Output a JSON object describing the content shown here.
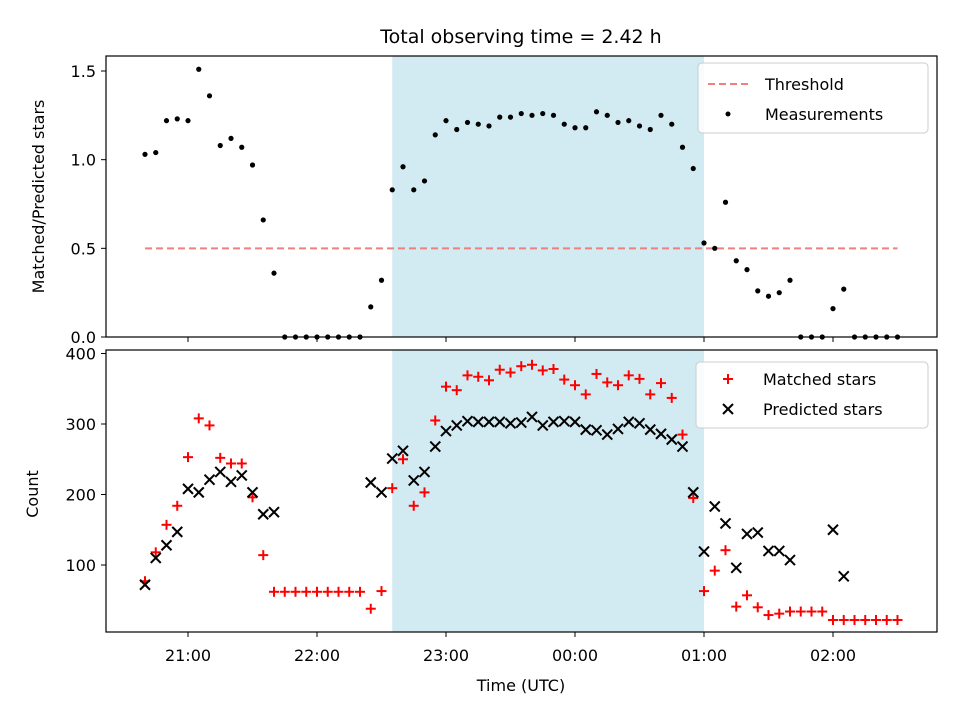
{
  "title": "Total observing time = 2.42 h",
  "xlabel": "Time (UTC)",
  "x_ticks": [
    "21:00",
    "22:00",
    "23:00",
    "00:00",
    "01:00",
    "02:00"
  ],
  "colors": {
    "threshold": "#f08080",
    "measurements": "#000000",
    "matched": "#ff0000",
    "predicted": "#000000",
    "span": "#add8e6"
  },
  "chart_data": [
    {
      "type": "scatter",
      "ylabel": "Matched/Predicted stars",
      "ylim": [
        0,
        1.6
      ],
      "y_ticks": [
        "0.0",
        "0.5",
        "1.0",
        "1.5"
      ],
      "observing_window": [
        "22:35",
        "01:00"
      ],
      "threshold": {
        "name": "Threshold",
        "y": 0.5,
        "x_range": [
          "20:40",
          "02:30"
        ]
      },
      "series": [
        {
          "name": "Measurements",
          "x": [
            "20:40",
            "20:45",
            "20:50",
            "20:55",
            "21:00",
            "21:05",
            "21:10",
            "21:15",
            "21:20",
            "21:25",
            "21:30",
            "21:35",
            "21:40",
            "21:45",
            "21:50",
            "21:55",
            "22:00",
            "22:05",
            "22:10",
            "22:15",
            "22:20",
            "22:25",
            "22:30",
            "22:35",
            "22:40",
            "22:45",
            "22:50",
            "22:55",
            "23:00",
            "23:05",
            "23:10",
            "23:15",
            "23:20",
            "23:25",
            "23:30",
            "23:35",
            "23:40",
            "23:45",
            "23:50",
            "23:55",
            "00:00",
            "00:05",
            "00:10",
            "00:15",
            "00:20",
            "00:25",
            "00:30",
            "00:35",
            "00:40",
            "00:45",
            "00:50",
            "00:55",
            "01:00",
            "01:05",
            "01:10",
            "01:15",
            "01:20",
            "01:25",
            "01:30",
            "01:35",
            "01:40",
            "01:45",
            "01:50",
            "01:55",
            "02:00",
            "02:05",
            "02:10",
            "02:15",
            "02:20",
            "02:25",
            "02:30"
          ],
          "y": [
            1.03,
            1.04,
            1.22,
            1.23,
            1.22,
            1.51,
            1.36,
            1.08,
            1.12,
            1.07,
            0.97,
            0.66,
            0.36,
            0,
            0,
            0,
            0,
            0,
            0,
            0,
            0,
            0.17,
            0.32,
            0.83,
            0.96,
            0.83,
            0.88,
            1.14,
            1.22,
            1.17,
            1.21,
            1.2,
            1.19,
            1.24,
            1.24,
            1.26,
            1.25,
            1.26,
            1.25,
            1.2,
            1.18,
            1.18,
            1.27,
            1.25,
            1.21,
            1.22,
            1.19,
            1.17,
            1.25,
            1.2,
            1.07,
            0.95,
            0.53,
            0.5,
            0.76,
            0.43,
            0.38,
            0.26,
            0.23,
            0.25,
            0.32,
            0,
            0,
            0,
            0.16,
            0.27,
            0,
            0,
            0,
            0,
            0
          ]
        }
      ]
    },
    {
      "type": "scatter",
      "ylabel": "Count",
      "ylim": [
        0,
        400
      ],
      "y_ticks": [
        "100",
        "200",
        "300",
        "400"
      ],
      "observing_window": [
        "22:35",
        "01:00"
      ],
      "series": [
        {
          "name": "Matched stars",
          "x": [
            "20:40",
            "20:45",
            "20:50",
            "20:55",
            "21:00",
            "21:05",
            "21:10",
            "21:15",
            "21:20",
            "21:25",
            "21:30",
            "21:35",
            "21:40",
            "21:45",
            "21:50",
            "21:55",
            "22:00",
            "22:05",
            "22:10",
            "22:15",
            "22:20",
            "22:25",
            "22:30",
            "22:35",
            "22:40",
            "22:45",
            "22:50",
            "22:55",
            "23:00",
            "23:05",
            "23:10",
            "23:15",
            "23:20",
            "23:25",
            "23:30",
            "23:35",
            "23:40",
            "23:45",
            "23:50",
            "23:55",
            "00:00",
            "00:05",
            "00:10",
            "00:15",
            "00:20",
            "00:25",
            "00:30",
            "00:35",
            "00:40",
            "00:45",
            "00:50",
            "00:55",
            "01:00",
            "01:05",
            "01:10",
            "01:15",
            "01:20",
            "01:25",
            "01:30",
            "01:35",
            "01:40",
            "01:45",
            "01:50",
            "01:55",
            "02:00",
            "02:05",
            "02:10",
            "02:15",
            "02:20",
            "02:25",
            "02:30"
          ],
          "y": [
            77,
            118,
            157,
            184,
            253,
            308,
            298,
            252,
            244,
            244,
            196,
            114,
            62,
            62,
            62,
            62,
            62,
            62,
            62,
            62,
            62,
            38,
            63,
            209,
            250,
            184,
            203,
            305,
            353,
            348,
            369,
            367,
            362,
            377,
            373,
            382,
            384,
            376,
            378,
            363,
            355,
            342,
            371,
            359,
            355,
            369,
            364,
            342,
            358,
            337,
            285,
            195,
            63,
            92,
            121,
            41,
            57,
            40,
            29,
            31,
            34,
            34,
            34,
            34,
            22,
            22,
            22,
            22,
            22,
            22,
            22
          ]
        },
        {
          "name": "Predicted stars",
          "x": [
            "20:40",
            "20:45",
            "20:50",
            "20:55",
            "21:00",
            "21:05",
            "21:10",
            "21:15",
            "21:20",
            "21:25",
            "21:30",
            "21:35",
            "21:40",
            "22:25",
            "22:30",
            "22:35",
            "22:40",
            "22:45",
            "22:50",
            "22:55",
            "23:00",
            "23:05",
            "23:10",
            "23:15",
            "23:20",
            "23:25",
            "23:30",
            "23:35",
            "23:40",
            "23:45",
            "23:50",
            "23:55",
            "00:00",
            "00:05",
            "00:10",
            "00:15",
            "00:20",
            "00:25",
            "00:30",
            "00:35",
            "00:40",
            "00:45",
            "00:50",
            "00:55",
            "01:00",
            "01:05",
            "01:10",
            "01:15",
            "01:20",
            "01:25",
            "01:30",
            "01:35",
            "01:40",
            "02:00",
            "02:05"
          ],
          "y": [
            72,
            110,
            128,
            147,
            208,
            203,
            221,
            232,
            218,
            227,
            203,
            172,
            175,
            217,
            203,
            251,
            262,
            220,
            232,
            268,
            290,
            298,
            304,
            303,
            303,
            303,
            301,
            302,
            310,
            298,
            303,
            304,
            303,
            292,
            291,
            285,
            293,
            303,
            301,
            292,
            286,
            278,
            268,
            203,
            119,
            183,
            159,
            96,
            144,
            146,
            120,
            120,
            107,
            150,
            84
          ]
        }
      ]
    }
  ]
}
